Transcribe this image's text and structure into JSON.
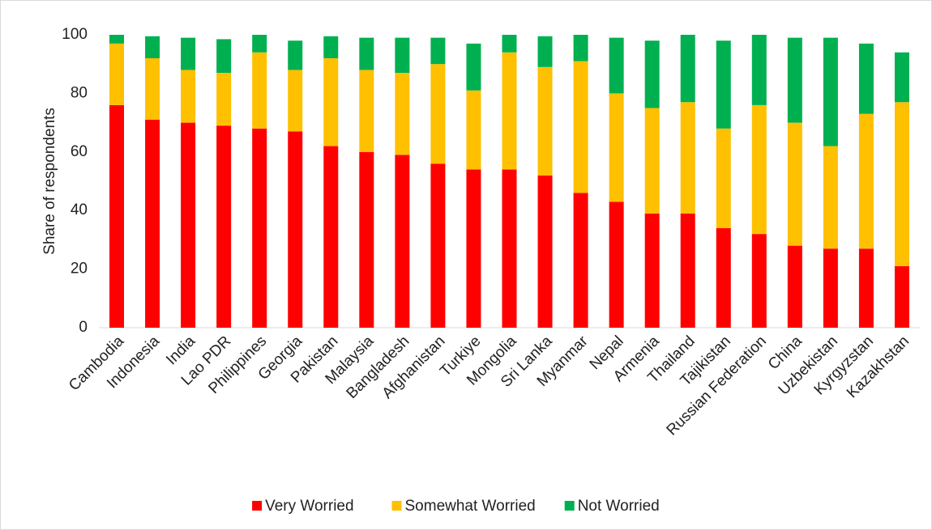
{
  "chart_data": {
    "type": "stacked_bar",
    "y_axis_label": "Share of respondents",
    "categories": [
      "Cambodia",
      "Indonesia",
      "India",
      "Lao PDR",
      "Philippines",
      "Georgia",
      "Pakistan",
      "Malaysia",
      "Bangladesh",
      "Afghanistan",
      "Turkiye",
      "Mongolia",
      "Sri Lanka",
      "Myanmar",
      "Nepal",
      "Armenia",
      "Thailand",
      "Tajikistan",
      "Russian Federation",
      "China",
      "Uzbekistan",
      "Kyrgyzstan",
      "Kazakhstan"
    ],
    "series": [
      {
        "name": "Very Worried",
        "color": "#ff0000",
        "values": [
          76,
          71,
          70,
          69,
          68,
          67,
          62,
          60,
          59,
          56,
          54,
          54,
          52,
          46,
          43,
          39,
          39,
          34,
          32,
          28,
          27,
          27,
          21
        ]
      },
      {
        "name": "Somewhat Worried",
        "color": "#ffc000",
        "values": [
          21,
          21,
          18,
          18,
          26,
          21,
          30,
          28,
          28,
          34,
          27,
          40,
          37,
          45,
          37,
          36,
          38,
          34,
          44,
          42,
          35,
          46,
          56
        ]
      },
      {
        "name": "Not Worried",
        "color": "#00b050",
        "values": [
          3,
          7.5,
          11,
          11.5,
          6,
          10,
          7.5,
          11,
          12,
          9,
          16,
          6,
          10.5,
          9,
          19,
          23,
          23,
          30,
          24,
          29,
          37,
          24,
          17
        ]
      }
    ],
    "ylim": [
      0,
      100
    ],
    "yticks": [
      0,
      20,
      40,
      60,
      80,
      100
    ],
    "grid": false,
    "legend": "bottom"
  }
}
